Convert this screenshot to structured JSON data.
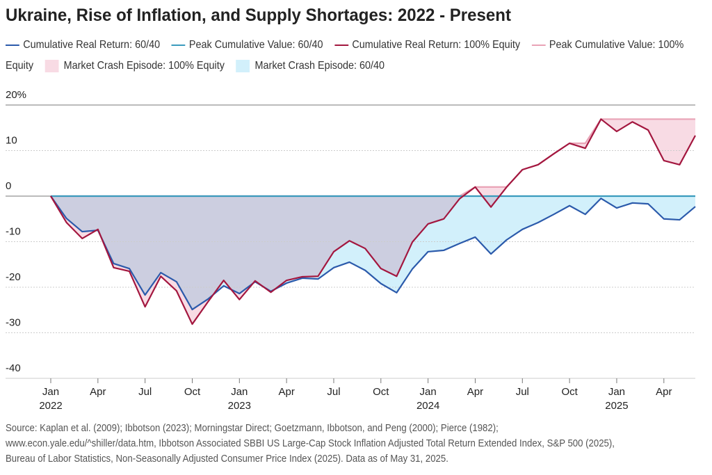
{
  "chart_data": {
    "type": "line",
    "title": "Ukraine, Rise of Inflation, and Supply Shortages: 2022 - Present",
    "categories": [
      "Jan 2022",
      null,
      null,
      "Apr",
      null,
      null,
      "Jul",
      null,
      null,
      "Oct",
      null,
      null,
      "Jan 2023",
      null,
      null,
      "Apr",
      null,
      null,
      "Jul",
      null,
      null,
      "Oct",
      null,
      null,
      "Jan 2024",
      null,
      null,
      "Apr",
      null,
      null,
      "Jul",
      null,
      null,
      "Oct",
      null,
      null,
      "Jan 2025",
      null,
      null,
      "Apr",
      null,
      null
    ],
    "series": [
      {
        "name": "Cumulative Real Return: 60/40",
        "color": "#2b5aab",
        "values": [
          0,
          -4.9,
          -7.8,
          -7.5,
          -14.8,
          -15.9,
          -21.7,
          -16.8,
          -18.8,
          -24.9,
          -22.6,
          -19.7,
          -21.4,
          -18.8,
          -20.9,
          -19.1,
          -18.0,
          -18.2,
          -15.7,
          -14.5,
          -16.3,
          -19.2,
          -21.2,
          -16.0,
          -12.2,
          -11.9,
          -10.4,
          -9.0,
          -12.7,
          -9.6,
          -7.3,
          -5.8,
          -4.0,
          -2.1,
          -4.0,
          -0.5,
          -2.6,
          -1.5,
          -1.7,
          -5.0,
          -5.2,
          -2.3
        ]
      },
      {
        "name": "Peak Cumulative Value: 60/40",
        "color": "#3a9bbd",
        "values": [
          0,
          0,
          0,
          0,
          0,
          0,
          0,
          0,
          0,
          0,
          0,
          0,
          0,
          0,
          0,
          0,
          0,
          0,
          0,
          0,
          0,
          0,
          0,
          0,
          0,
          0,
          0,
          0,
          0,
          0,
          0,
          0,
          0,
          0,
          0,
          0,
          0,
          0,
          0,
          0,
          0,
          0
        ]
      },
      {
        "name": "Cumulative Real Return: 100% Equity",
        "color": "#a3173f",
        "values": [
          0,
          -5.8,
          -9.3,
          -7.3,
          -15.7,
          -16.5,
          -24.3,
          -17.6,
          -20.8,
          -28.1,
          -23.2,
          -18.5,
          -22.7,
          -18.6,
          -21.1,
          -18.5,
          -17.7,
          -17.6,
          -12.2,
          -9.8,
          -11.5,
          -15.9,
          -17.6,
          -10.1,
          -6.1,
          -5.0,
          -0.6,
          2.0,
          -2.4,
          2.0,
          5.8,
          6.9,
          9.3,
          11.6,
          10.5,
          16.9,
          14.2,
          16.3,
          14.5,
          7.8,
          6.9,
          13.3
        ]
      },
      {
        "name": "Peak Cumulative Value:  100% Equity",
        "color": "#e9a3b6",
        "values": [
          0,
          0,
          0,
          0,
          0,
          0,
          0,
          0,
          0,
          0,
          0,
          0,
          0,
          0,
          0,
          0,
          0,
          0,
          0,
          0,
          0,
          0,
          0,
          0,
          0,
          0,
          0,
          2.0,
          2.0,
          2.0,
          5.8,
          6.9,
          9.3,
          11.6,
          11.6,
          16.9,
          16.9,
          16.9,
          16.9,
          16.9,
          16.9,
          16.9
        ]
      }
    ],
    "shaded": [
      {
        "name": "Market Crash Episode: 100% Equity",
        "color": "#f8dbe4"
      },
      {
        "name": "Market Crash Episode: 60/40",
        "color": "#d2f0fb"
      }
    ],
    "ylim": [
      -40,
      20
    ],
    "yticks": [
      {
        "value": 20,
        "label": "20%"
      },
      10,
      0,
      -10,
      -20,
      -30,
      -40
    ],
    "grid": true,
    "source": [
      "Source: Kaplan et al. (2009); Ibbotson (2023); Morningstar Direct; Goetzmann, Ibbotson, and Peng (2000); Pierce (1982);",
      "www.econ.yale.edu/^shiller/data.htm, Ibbotson Associated SBBI US Large-Cap Stock Inflation Adjusted Total Return Extended Index, S&P 500 (2025),",
      "Bureau of Labor Statistics, Non-Seasonally Adjusted Consumer Price Index (2025). Data as of May 31, 2025."
    ]
  }
}
